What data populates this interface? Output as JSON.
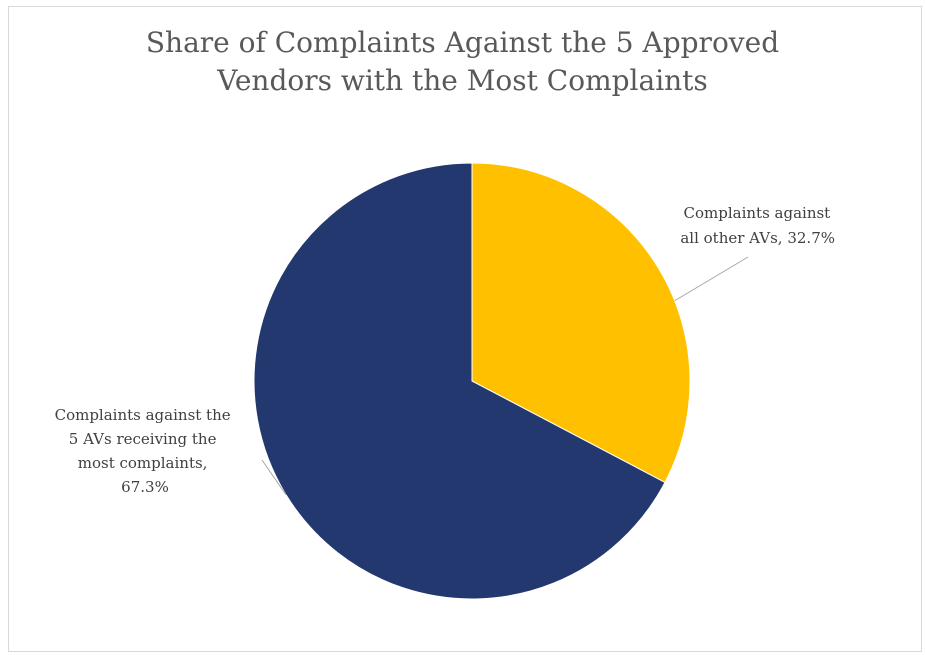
{
  "chart_data": {
    "type": "pie",
    "title_lines": [
      "Share of Complaints Against the 5 Approved",
      "Vendors with the Most Complaints"
    ],
    "slices": [
      {
        "label_lines": [
          "Complaints against",
          "all other AVs, 32.7%"
        ],
        "value": 32.7,
        "color": "#FFC000"
      },
      {
        "label_lines": [
          "Complaints against the",
          "5 AVs receiving the",
          "most complaints,",
          "67.3%"
        ],
        "value": 67.3,
        "color": "#23386E"
      }
    ],
    "start": "12 o'clock",
    "direction": "clockwise",
    "leader_line_color": "#A6A6A6"
  }
}
